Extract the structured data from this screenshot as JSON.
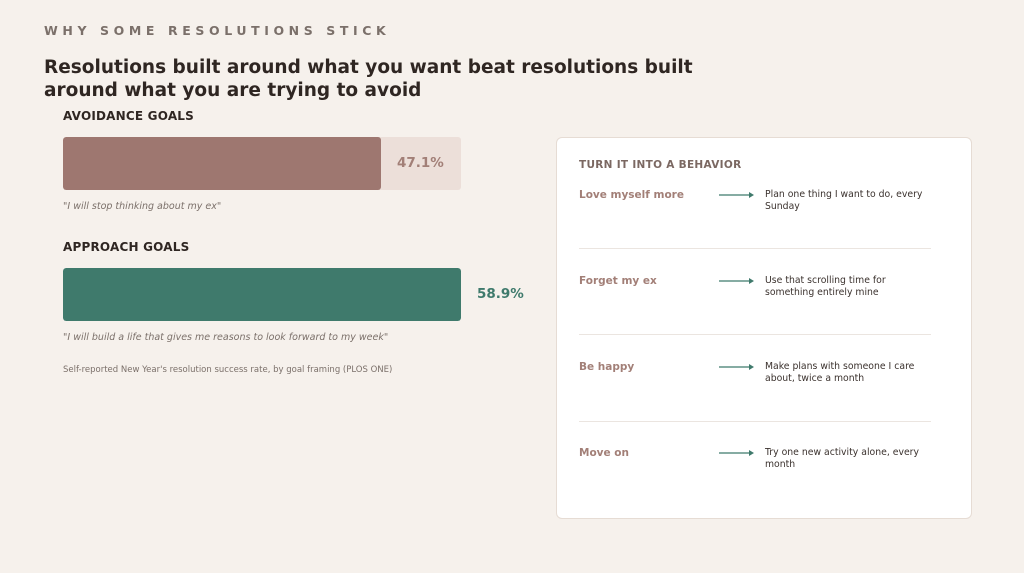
{
  "eyebrow": "WHY SOME RESOLUTIONS STICK",
  "headline": "Resolutions built around what you want beat resolutions built around what you are trying to avoid",
  "chart_data": {
    "type": "bar",
    "orientation": "horizontal",
    "categories": [
      "AVOIDANCE GOALS",
      "APPROACH GOALS"
    ],
    "values": [
      47.1,
      58.9
    ],
    "value_labels": [
      "47.1%",
      "58.9%"
    ],
    "xlim": [
      0,
      58.9
    ],
    "quotes": [
      "\"I will stop thinking about my ex\"",
      "\"I will build a life that gives me reasons to look forward to my week\""
    ],
    "source": "Self-reported New Year's resolution success rate, by goal framing (PLOS ONE)",
    "colors": {
      "avoidance": "#9e7770",
      "approach": "#3f7a6c"
    }
  },
  "card": {
    "title": "TURN IT INTO A BEHAVIOR",
    "arrow_icon": "arrow-right-icon",
    "rows": [
      {
        "from": "Love myself more",
        "to": "Plan one thing I want to do, every Sunday"
      },
      {
        "from": "Forget my ex",
        "to": "Use that scrolling time for something entirely mine"
      },
      {
        "from": "Be happy",
        "to": "Make plans with someone I care about, twice a month"
      },
      {
        "from": "Move on",
        "to": "Try one new activity alone, every month"
      }
    ]
  }
}
